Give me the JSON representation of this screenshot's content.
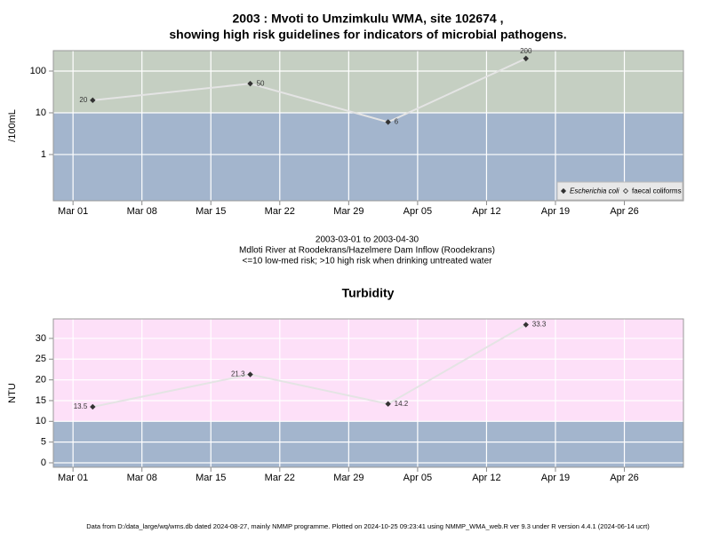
{
  "chart_data": [
    {
      "type": "line",
      "title": [
        "2003 : Mvoti to Umzimkulu WMA, site 102674 ,",
        "showing high risk guidelines for indicators of microbial pathogens."
      ],
      "y_label": "/100mL",
      "notes": [
        "2003-03-01 to 2003-04-30",
        "Mdloti River at Roodekrans/Hazelmere Dam Inflow (Roodekrans)",
        "<=10 low-med risk; >10 high risk when drinking untreated water"
      ],
      "x": [
        "2003-03-03",
        "2003-03-19",
        "2003-04-02",
        "2003-04-16"
      ],
      "series": [
        {
          "name": "Escherichia coli",
          "color": "#333333",
          "values": [
            20,
            50,
            6,
            200
          ]
        },
        {
          "name": "faecal coliforms",
          "color": "#333333",
          "values": [
            null,
            null,
            null,
            null
          ]
        }
      ],
      "xlim": [
        "2003-02-27",
        "2003-05-02"
      ],
      "xticks": [
        {
          "value": "2003-03-01",
          "label": "Mar 01"
        },
        {
          "value": "2003-03-08",
          "label": "Mar 08"
        },
        {
          "value": "2003-03-15",
          "label": "Mar 15"
        },
        {
          "value": "2003-03-22",
          "label": "Mar 22"
        },
        {
          "value": "2003-03-29",
          "label": "Mar 29"
        },
        {
          "value": "2003-04-05",
          "label": "Apr 05"
        },
        {
          "value": "2003-04-12",
          "label": "Apr 12"
        },
        {
          "value": "2003-04-19",
          "label": "Apr 19"
        },
        {
          "value": "2003-04-26",
          "label": "Apr 26"
        }
      ],
      "ylim": [
        0.078,
        309
      ],
      "yticks": [
        1,
        10,
        100
      ],
      "log_y": true,
      "grid": true,
      "threshold": 10,
      "color_below": "#a3b5cd",
      "color_above": "#c5cfc2",
      "line_color": "#e4e4e4",
      "legend": "bottom-right"
    },
    {
      "type": "line",
      "title": "Turbidity",
      "y_label": "NTU",
      "x": [
        "2003-03-03",
        "2003-03-19",
        "2003-04-02",
        "2003-04-16"
      ],
      "series": [
        {
          "name": "Turbidity",
          "color": "#333333",
          "values": [
            13.5,
            21.3,
            14.2,
            33.3
          ]
        }
      ],
      "xlim": [
        "2003-02-27",
        "2003-05-02"
      ],
      "xticks": [
        {
          "value": "2003-03-01",
          "label": "Mar 01"
        },
        {
          "value": "2003-03-08",
          "label": "Mar 08"
        },
        {
          "value": "2003-03-15",
          "label": "Mar 15"
        },
        {
          "value": "2003-03-22",
          "label": "Mar 22"
        },
        {
          "value": "2003-03-29",
          "label": "Mar 29"
        },
        {
          "value": "2003-04-05",
          "label": "Apr 05"
        },
        {
          "value": "2003-04-12",
          "label": "Apr 12"
        },
        {
          "value": "2003-04-19",
          "label": "Apr 19"
        },
        {
          "value": "2003-04-26",
          "label": "Apr 26"
        }
      ],
      "ylim": [
        -1.07,
        34.7
      ],
      "yticks": [
        0,
        5,
        10,
        15,
        20,
        25,
        30
      ],
      "log_y": false,
      "grid": true,
      "threshold": 10,
      "color_below": "#a3b5cd",
      "color_above": "#fde0f8",
      "line_color": "#e4e4e4"
    }
  ],
  "footer": "Data from D:/data_large/wq/wms.db dated 2024-08-27, mainly NMMP programme. Plotted on 2024-10-25 09:23:41 using NMMP_WMA_web.R ver 9.3 under R version 4.4.1 (2024-06-14 ucrt)"
}
